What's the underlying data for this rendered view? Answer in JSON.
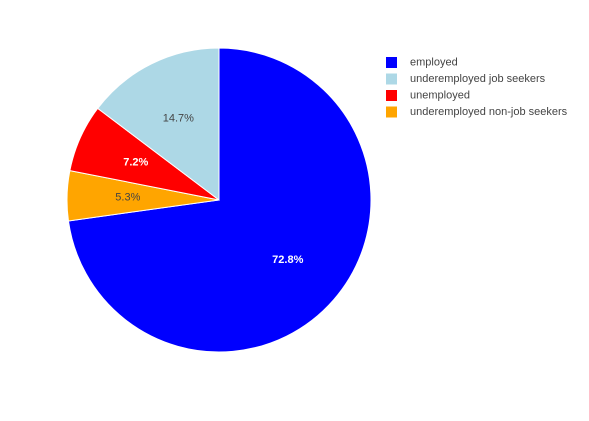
{
  "chart_data": {
    "type": "pie",
    "categories": [
      "employed",
      "underemployed job seekers",
      "unemployed",
      "underemployed non-job seekers"
    ],
    "values": [
      72.8,
      14.7,
      7.2,
      5.3
    ],
    "value_labels": [
      "72.8%",
      "14.7%",
      "7.2%",
      "5.3%"
    ],
    "colors": [
      "#0000ff",
      "#add8e6",
      "#ff0000",
      "#ffa500"
    ],
    "direction": "clockwise",
    "slice_order": [
      0,
      3,
      2,
      1
    ],
    "legend": "top-right"
  }
}
